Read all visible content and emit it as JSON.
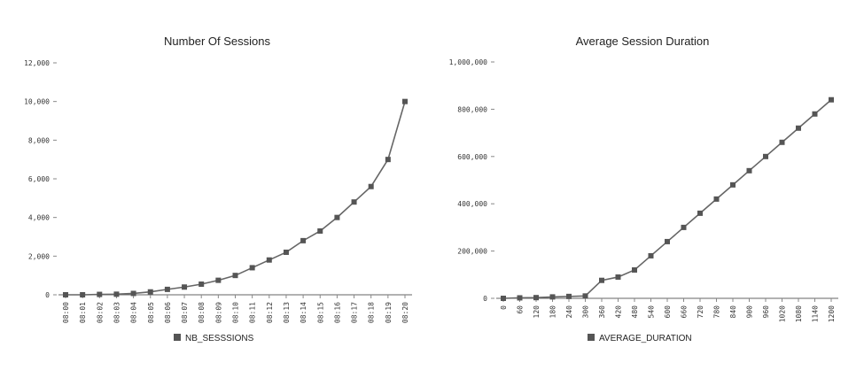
{
  "chart_data": [
    {
      "type": "line",
      "title": "Number Of Sessions",
      "xlabel": "",
      "ylabel": "",
      "categories": [
        "08:00",
        "08:01",
        "08:02",
        "08:03",
        "08:04",
        "08:05",
        "08:06",
        "08:07",
        "08:08",
        "08:09",
        "08:10",
        "08:11",
        "08:12",
        "08:13",
        "08:14",
        "08:15",
        "08:16",
        "08:17",
        "08:18",
        "08:19",
        "08:20"
      ],
      "series": [
        {
          "name": "NB_SESSSIONS",
          "values": [
            0,
            0,
            20,
            30,
            70,
            150,
            280,
            400,
            550,
            750,
            1000,
            1400,
            1800,
            2200,
            2800,
            3300,
            4000,
            4800,
            5600,
            7000,
            10000
          ]
        }
      ],
      "ylim": [
        0,
        12000
      ],
      "yticks": [
        0,
        2000,
        4000,
        6000,
        8000,
        10000,
        12000
      ],
      "ytick_labels": [
        "0",
        "2,000",
        "4,000",
        "6,000",
        "8,000",
        "10,000",
        "12,000"
      ],
      "legend": "bottom-center",
      "grid": false,
      "colors": {
        "line": "#666666",
        "marker": "#555555",
        "axis": "#666666"
      }
    },
    {
      "type": "line",
      "title": "Average Session Duration",
      "xlabel": "",
      "ylabel": "",
      "categories": [
        "0",
        "60",
        "120",
        "180",
        "240",
        "300",
        "360",
        "420",
        "480",
        "540",
        "600",
        "660",
        "720",
        "780",
        "840",
        "900",
        "960",
        "1020",
        "1080",
        "1140",
        "1200"
      ],
      "series": [
        {
          "name": "AVERAGE_DURATION",
          "values": [
            0,
            2000,
            3000,
            6000,
            8000,
            10000,
            76000,
            90000,
            120000,
            180000,
            240000,
            300000,
            360000,
            420000,
            480000,
            540000,
            600000,
            660000,
            720000,
            780000,
            840000
          ]
        }
      ],
      "ylim": [
        0,
        1000000
      ],
      "yticks": [
        0,
        200000,
        400000,
        600000,
        800000,
        1000000
      ],
      "ytick_labels": [
        "0",
        "200,000",
        "400,000",
        "600,000",
        "800,000",
        "1,000,000"
      ],
      "legend": "bottom-center",
      "grid": false,
      "colors": {
        "line": "#666666",
        "marker": "#555555",
        "axis": "#666666"
      }
    }
  ]
}
